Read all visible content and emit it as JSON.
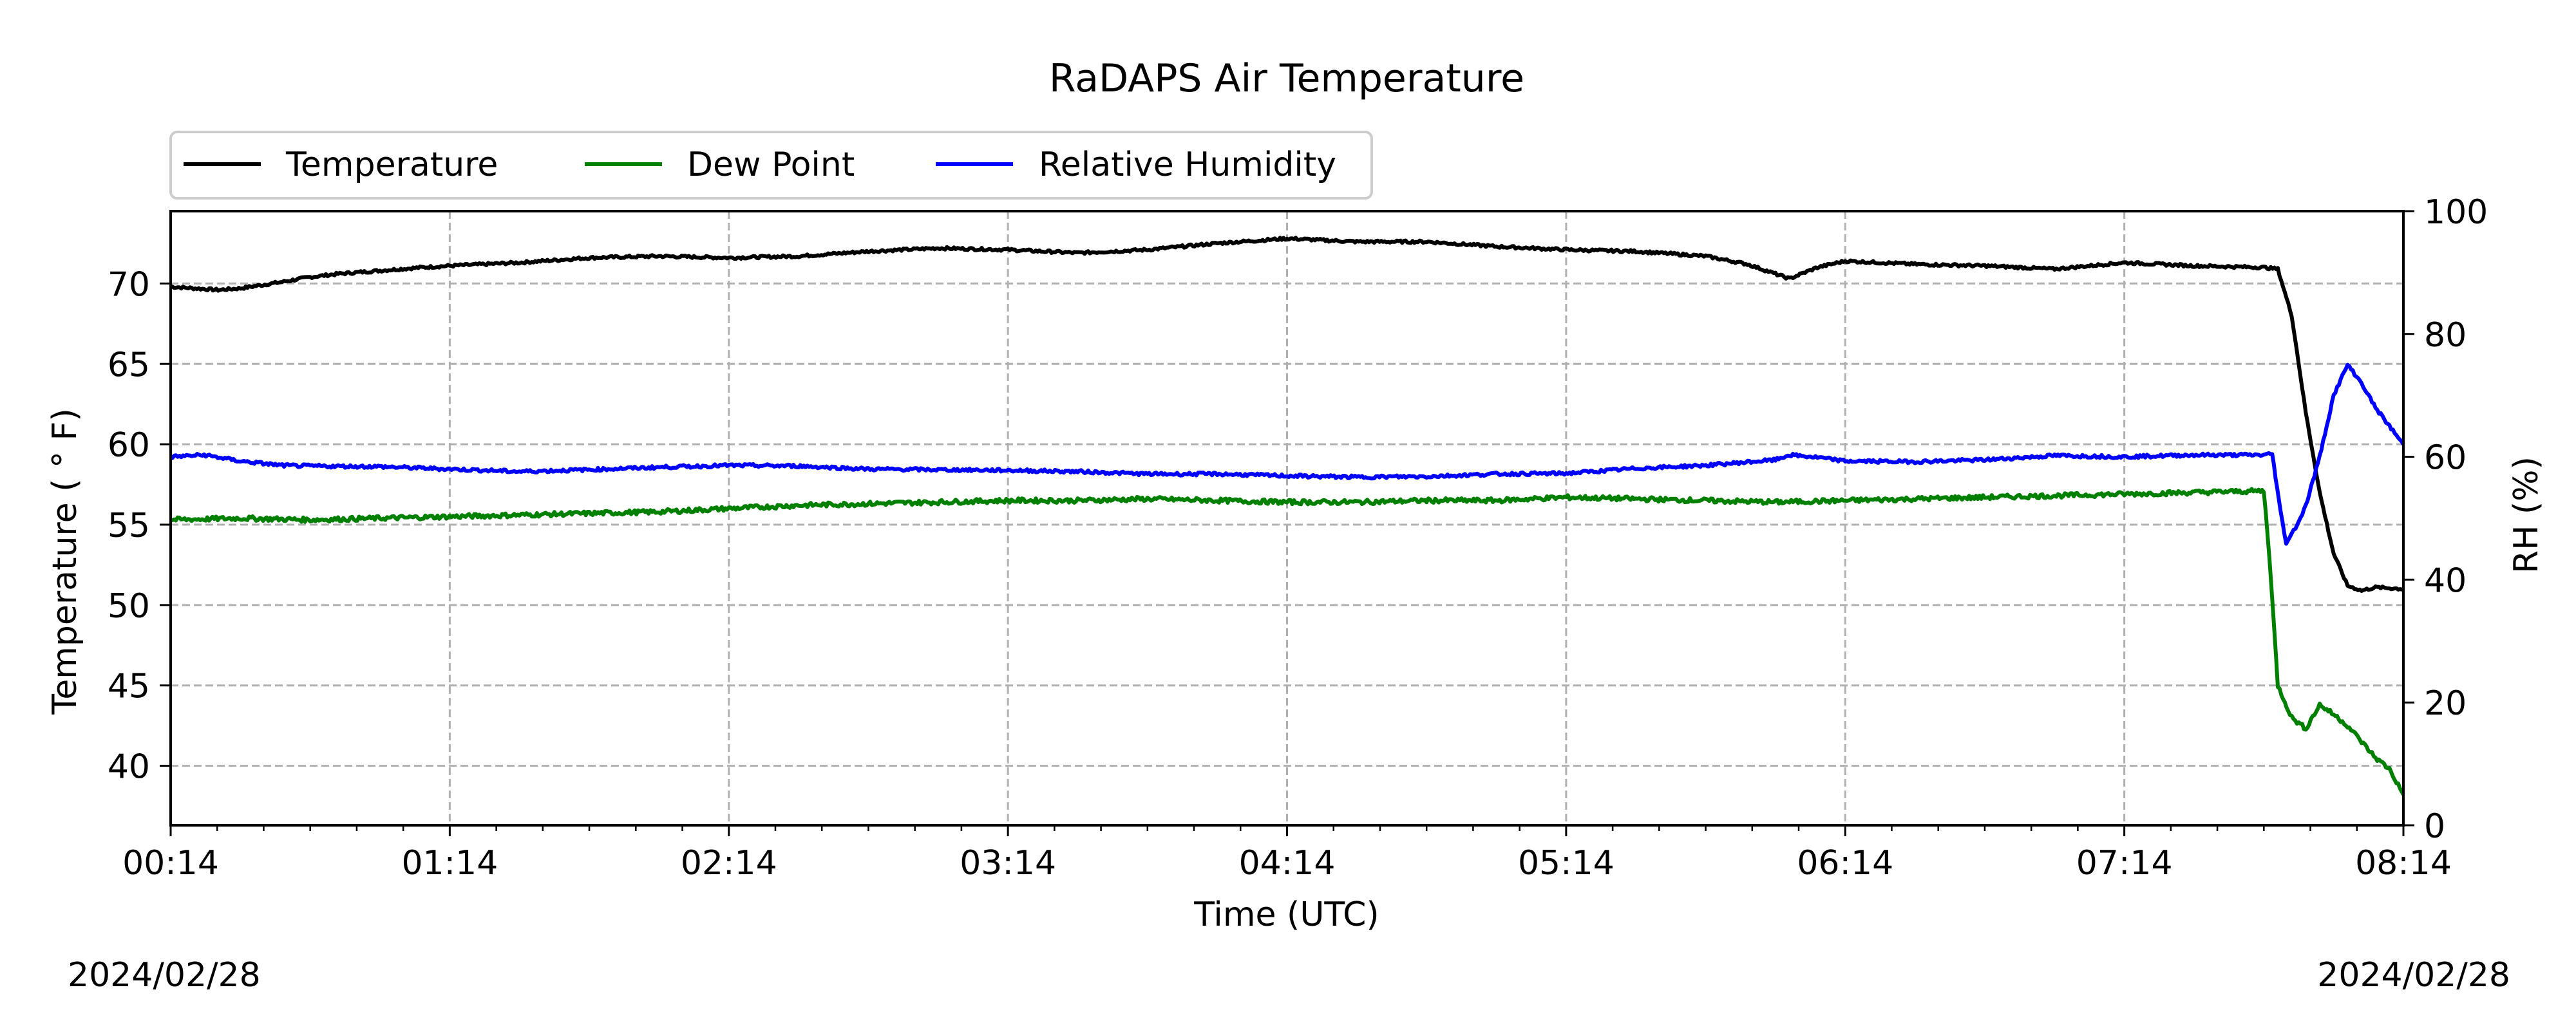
{
  "chart_data": {
    "type": "line",
    "title": "RaDAPS Air Temperature",
    "xlabel": "Time (UTC)",
    "ylabel": "Temperature ( $^\\circ$F)",
    "ylabel_display": "Temperature ( ° F)",
    "y2label": "RH (%)",
    "date_left": "2024/02/28",
    "date_right": "2024/02/28",
    "x_ticks": [
      "00:14",
      "01:14",
      "02:14",
      "03:14",
      "04:14",
      "05:14",
      "06:14",
      "07:14",
      "08:14"
    ],
    "x_range_hours": [
      0,
      8
    ],
    "ylim": [
      36.3,
      74.5
    ],
    "y_ticks": [
      40,
      45,
      50,
      55,
      60,
      65,
      70
    ],
    "y2lim": [
      0,
      100
    ],
    "y2_ticks": [
      0,
      20,
      40,
      60,
      80,
      100
    ],
    "grid": true,
    "legend": {
      "position": "top-left, above plot",
      "entries": [
        "Temperature",
        "Dew Point",
        "Relative Humidity"
      ]
    },
    "colors": {
      "Temperature": "#000000",
      "Dew Point": "#008000",
      "Relative Humidity": "#0000ff",
      "grid": "#b0b0b0"
    },
    "series": [
      {
        "name": "Temperature",
        "axis": "left",
        "x": [
          0,
          0.17,
          0.25,
          0.4,
          0.5,
          0.6,
          0.75,
          0.9,
          1.0,
          1.25,
          1.5,
          1.75,
          2.0,
          2.25,
          2.5,
          2.75,
          3.0,
          3.25,
          3.5,
          3.75,
          4.0,
          4.25,
          4.5,
          4.75,
          5.0,
          5.25,
          5.5,
          5.65,
          5.8,
          5.9,
          6.0,
          6.25,
          6.5,
          6.75,
          7.0,
          7.25,
          7.5,
          7.55,
          7.6,
          7.65,
          7.7,
          7.75,
          7.8,
          7.85,
          7.9,
          8.0
        ],
        "y": [
          69.8,
          69.6,
          69.7,
          70.1,
          70.4,
          70.6,
          70.8,
          71.0,
          71.1,
          71.3,
          71.6,
          71.7,
          71.6,
          71.7,
          72.0,
          72.2,
          72.1,
          71.9,
          72.1,
          72.5,
          72.8,
          72.6,
          72.6,
          72.3,
          72.1,
          72.0,
          71.7,
          71.2,
          70.3,
          71.0,
          71.4,
          71.2,
          71.1,
          70.9,
          71.3,
          71.1,
          71.0,
          70.9,
          68.0,
          62.0,
          57.0,
          53.2,
          51.2,
          50.9,
          51.1,
          51.0
        ]
      },
      {
        "name": "Dew Point",
        "axis": "left",
        "x": [
          0,
          0.25,
          0.5,
          0.75,
          1.0,
          1.25,
          1.5,
          1.75,
          2.0,
          2.25,
          2.5,
          2.75,
          3.0,
          3.25,
          3.5,
          3.75,
          4.0,
          4.25,
          4.5,
          4.75,
          5.0,
          5.25,
          5.5,
          5.75,
          6.0,
          6.25,
          6.5,
          6.75,
          7.0,
          7.25,
          7.5,
          7.52,
          7.55,
          7.6,
          7.65,
          7.7,
          7.75,
          7.8,
          7.85,
          7.9,
          7.95,
          8.0
        ],
        "y": [
          55.3,
          55.4,
          55.3,
          55.4,
          55.5,
          55.6,
          55.7,
          55.8,
          56.0,
          56.2,
          56.3,
          56.4,
          56.5,
          56.5,
          56.6,
          56.5,
          56.4,
          56.4,
          56.5,
          56.5,
          56.7,
          56.6,
          56.5,
          56.4,
          56.5,
          56.6,
          56.7,
          56.8,
          56.9,
          57.0,
          57.1,
          53.0,
          45.0,
          43.0,
          42.3,
          43.8,
          43.2,
          42.5,
          41.5,
          40.5,
          39.8,
          38.2
        ]
      },
      {
        "name": "Relative Humidity",
        "axis": "right",
        "x": [
          0,
          0.12,
          0.25,
          0.4,
          0.5,
          0.75,
          1.0,
          1.25,
          1.5,
          1.75,
          2.0,
          2.25,
          2.5,
          2.75,
          3.0,
          3.25,
          3.5,
          3.75,
          4.0,
          4.25,
          4.5,
          4.75,
          5.0,
          5.25,
          5.5,
          5.75,
          5.8,
          5.9,
          6.0,
          6.25,
          6.5,
          6.75,
          7.0,
          7.25,
          7.5,
          7.53,
          7.56,
          7.58,
          7.62,
          7.65,
          7.7,
          7.75,
          7.8,
          7.85,
          7.9,
          7.95,
          8.0
        ],
        "y": [
          60.0,
          60.3,
          59.3,
          58.6,
          58.5,
          58.4,
          58.0,
          57.6,
          57.9,
          58.3,
          58.6,
          58.5,
          58.0,
          57.9,
          57.8,
          57.6,
          57.2,
          57.2,
          56.9,
          56.7,
          56.8,
          57.2,
          57.3,
          58.1,
          58.6,
          59.5,
          60.3,
          59.9,
          59.3,
          59.2,
          59.5,
          60.2,
          60.0,
          60.3,
          60.3,
          60.5,
          51.0,
          46.0,
          49.0,
          52.0,
          60.0,
          70.0,
          75.0,
          72.0,
          68.0,
          65.0,
          62.0
        ]
      }
    ]
  }
}
